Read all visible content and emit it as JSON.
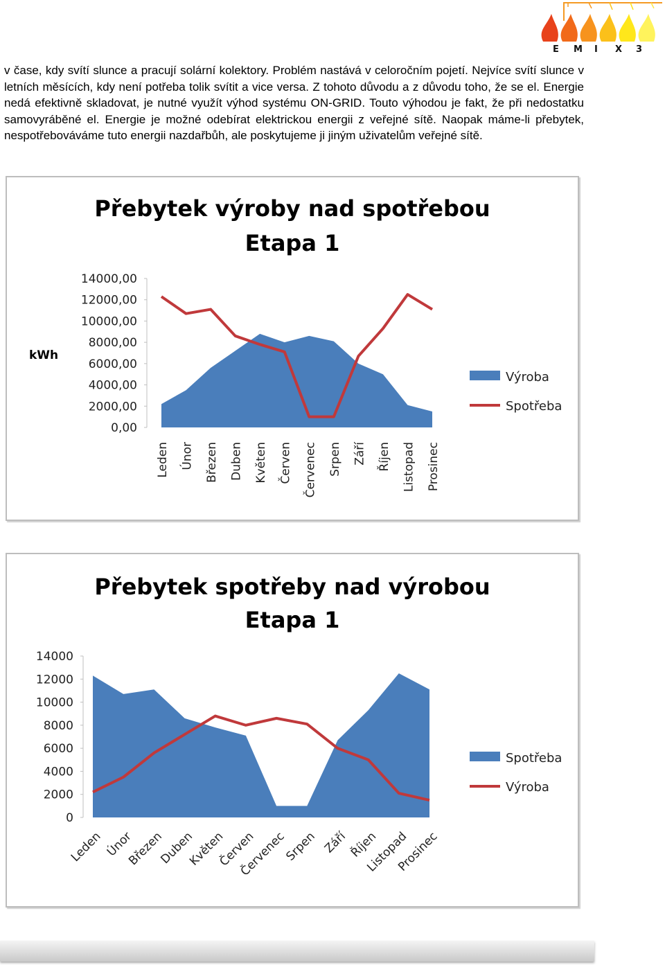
{
  "logo": {
    "letters": [
      "E",
      "M",
      "I",
      "X",
      "3"
    ],
    "flame_colors": [
      "#e8421b",
      "#f16a1a",
      "#f7931e",
      "#fbc01a",
      "#ffe71b",
      "#fff35c"
    ]
  },
  "body_text": "v čase, kdy svítí slunce a pracují solární kolektory. Problém nastává v celoročním pojetí. Nejvíce svítí slunce v letních měsících, kdy není potřeba tolik svítit a vice versa. Z tohoto důvodu a z důvodu toho, že se el. Energie nedá efektivně skladovat, je nutné využít výhod systému ON-GRID. Touto výhodou je fakt, že při nedostatku samovyráběné el. Energie je možné odebírat elektrickou energii z veřejné sítě. Naopak máme-li přebytek, nespotřebováváme tuto energii nazdařbůh, ale poskytujeme ji jiným uživatelům veřejné sítě.",
  "chart_data": [
    {
      "type": "area",
      "title": "Přebytek výroby nad spotřebou",
      "subtitle": "Etapa 1",
      "ylabel": "kWh",
      "xlabel": "",
      "ylim": [
        0,
        14000
      ],
      "yticks": [
        "0,00",
        "2000,00",
        "4000,00",
        "6000,00",
        "8000,00",
        "10000,00",
        "12000,00",
        "14000,00"
      ],
      "categories": [
        "Leden",
        "Únor",
        "Březen",
        "Duben",
        "Květen",
        "Červen",
        "Červenec",
        "Srpen",
        "Září",
        "Říjen",
        "Listopad",
        "Prosinec"
      ],
      "grid": false,
      "legend_position": "right",
      "series": [
        {
          "name": "Výroba",
          "kind": "area",
          "color": "#4a7ebb",
          "values": [
            2200,
            3500,
            5600,
            7200,
            8800,
            8000,
            8600,
            8100,
            6000,
            5000,
            2100,
            1500
          ]
        },
        {
          "name": "Spotřeba",
          "kind": "line",
          "color": "#c0393b",
          "values": [
            12300,
            10700,
            11100,
            8600,
            7800,
            7100,
            1000,
            1000,
            6700,
            9300,
            12500,
            11100
          ]
        }
      ]
    },
    {
      "type": "area",
      "title": "Přebytek spotřeby nad výrobou",
      "subtitle": "Etapa 1",
      "ylabel": "",
      "xlabel": "",
      "ylim": [
        0,
        14000
      ],
      "yticks": [
        "0",
        "2000",
        "4000",
        "6000",
        "8000",
        "10000",
        "12000",
        "14000"
      ],
      "categories": [
        "Leden",
        "Únor",
        "Březen",
        "Duben",
        "Květen",
        "Červen",
        "Červenec",
        "Srpen",
        "Září",
        "Říjen",
        "Listopad",
        "Prosinec"
      ],
      "grid": false,
      "legend_position": "right",
      "series": [
        {
          "name": "Spotřeba",
          "kind": "area",
          "color": "#4a7ebb",
          "values": [
            12300,
            10700,
            11100,
            8600,
            7800,
            7100,
            1000,
            1000,
            6700,
            9300,
            12500,
            11100
          ]
        },
        {
          "name": "Výroba",
          "kind": "line",
          "color": "#c0393b",
          "values": [
            2200,
            3500,
            5600,
            7200,
            8800,
            8000,
            8600,
            8100,
            6000,
            5000,
            2100,
            1500
          ]
        }
      ]
    }
  ]
}
